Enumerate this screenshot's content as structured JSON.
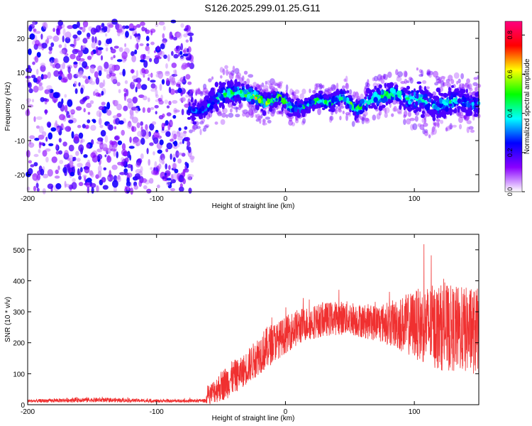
{
  "figure": {
    "title": "S126.2025.299.01.25.G11"
  },
  "chart_data": [
    {
      "type": "heatmap",
      "xlabel": "Height of straight line (km)",
      "ylabel": "Frequency (Hz)",
      "xlim": [
        -200,
        150
      ],
      "ylim": [
        -25,
        25
      ],
      "xticks": [
        -200,
        -100,
        0,
        100
      ],
      "yticks": [
        -20,
        -10,
        0,
        10,
        20
      ],
      "colorbar": {
        "label": "Normalized spectral amplitude",
        "range": [
          0.0,
          0.87
        ],
        "ticks": [
          "0.0",
          "0.2",
          "0.4",
          "0.6",
          "0.8"
        ],
        "colors": [
          "#ffffff",
          "#8a00ff",
          "#0000ff",
          "#00ffff",
          "#00ff00",
          "#ffff00",
          "#ff0000",
          "#ff007f"
        ]
      },
      "noise_region": {
        "x_range": [
          -200,
          -72
        ],
        "freq_range": [
          -25,
          25
        ],
        "amplitude": [
          0.05,
          0.25
        ]
      },
      "signal_track": {
        "x": [
          -75,
          -65,
          -55,
          -45,
          -35,
          -25,
          -15,
          -5,
          5,
          15,
          25,
          35,
          45,
          55,
          65,
          75,
          85,
          95,
          105,
          115,
          125,
          135,
          145,
          150
        ],
        "freq": [
          -1,
          -1.5,
          2,
          4,
          4,
          3,
          1,
          3,
          -0.5,
          0,
          2,
          1,
          3,
          -1,
          2,
          3,
          4,
          2,
          2,
          0,
          1,
          2,
          0,
          1
        ],
        "half_width_hz": [
          4,
          4,
          5,
          5,
          4,
          4,
          4,
          3,
          3,
          3,
          3,
          3,
          4,
          3,
          4,
          4,
          4,
          5,
          6,
          6,
          5,
          5,
          5,
          5
        ],
        "peak_amplitude": [
          0.3,
          0.35,
          0.4,
          0.5,
          0.55,
          0.65,
          0.6,
          0.55,
          0.5,
          0.45,
          0.5,
          0.55,
          0.45,
          0.6,
          0.5,
          0.6,
          0.55,
          0.5,
          0.45,
          0.4,
          0.45,
          0.4,
          0.4,
          0.4
        ]
      }
    },
    {
      "type": "line",
      "xlabel": "Height of straight line (km)",
      "ylabel": "SNR (10 * v/v)",
      "xlim": [
        -200,
        150
      ],
      "ylim": [
        0,
        550
      ],
      "xticks": [
        -200,
        -100,
        0,
        100
      ],
      "yticks": [
        0,
        100,
        200,
        300,
        400,
        500
      ],
      "series": [
        {
          "color": "#f03030",
          "x": [
            -200,
            -180,
            -160,
            -140,
            -120,
            -100,
            -80,
            -62,
            -60,
            -55,
            -50,
            -45,
            -40,
            -35,
            -30,
            -25,
            -20,
            -15,
            -10,
            -5,
            0,
            5,
            10,
            15,
            20,
            25,
            30,
            40,
            50,
            60,
            70,
            80,
            90,
            100,
            110,
            120,
            130,
            140,
            150
          ],
          "mean": [
            12,
            13,
            16,
            15,
            14,
            12,
            12,
            13,
            30,
            45,
            60,
            75,
            90,
            100,
            120,
            140,
            165,
            180,
            200,
            210,
            225,
            240,
            250,
            260,
            265,
            270,
            275,
            280,
            280,
            270,
            265,
            262,
            260,
            260,
            255,
            250,
            245,
            240,
            235
          ],
          "spread": [
            5,
            6,
            8,
            7,
            6,
            5,
            5,
            6,
            30,
            40,
            50,
            55,
            55,
            50,
            55,
            60,
            65,
            70,
            65,
            60,
            60,
            60,
            60,
            55,
            55,
            55,
            55,
            55,
            55,
            55,
            60,
            70,
            90,
            110,
            130,
            140,
            140,
            140,
            140
          ]
        }
      ]
    }
  ]
}
